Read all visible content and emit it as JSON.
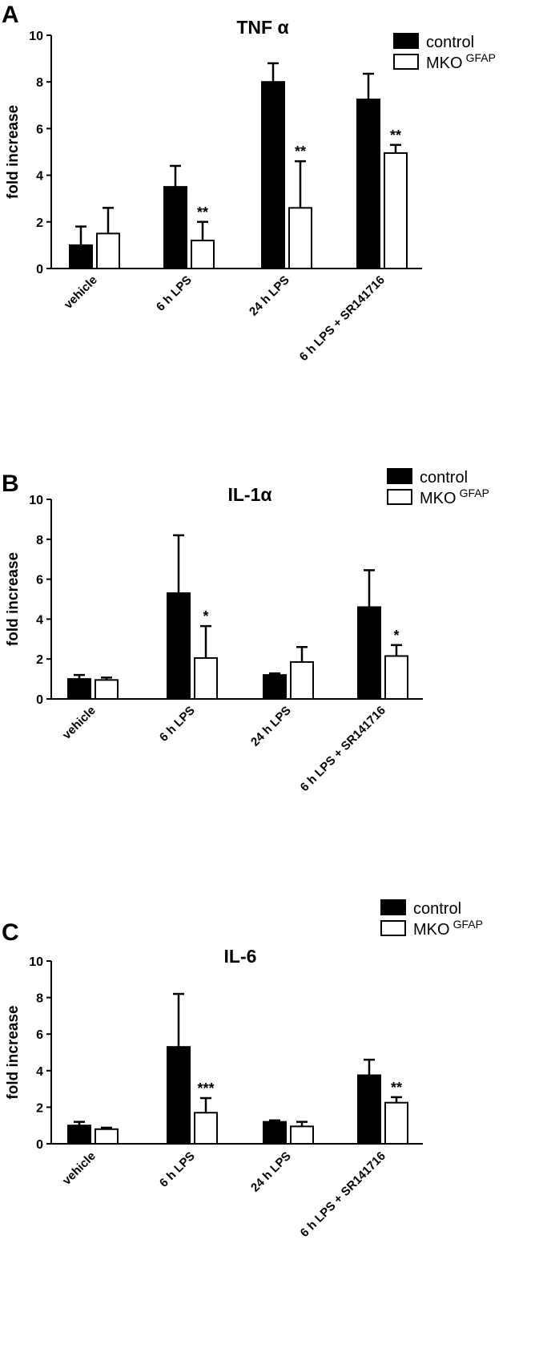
{
  "chart_data": [
    {
      "type": "bar",
      "panel_label": "A",
      "title": "TNF α",
      "ylabel": "fold increase",
      "xlabel": "",
      "ylim": [
        0,
        10
      ],
      "yticks": [
        "0",
        "2",
        "4",
        "6",
        "8",
        "10"
      ],
      "categories": [
        "vehicle",
        "6 h LPS",
        "24 h LPS",
        "6 h LPS + SR141716"
      ],
      "legend": {
        "position": "top-right",
        "entries": [
          {
            "name": "control",
            "sup": ""
          },
          {
            "name": "MKO",
            "sup": "GFAP"
          }
        ]
      },
      "series": [
        {
          "name": "control",
          "color": "#000000",
          "values": [
            1.0,
            3.5,
            8.0,
            7.25
          ],
          "errors": [
            0.8,
            0.9,
            0.8,
            1.1
          ],
          "significance": [
            "",
            "",
            "",
            ""
          ]
        },
        {
          "name": "MKO GFAP",
          "color": "#ffffff",
          "values": [
            1.5,
            1.2,
            2.6,
            4.95
          ],
          "errors": [
            1.1,
            0.8,
            2.0,
            0.35
          ],
          "significance": [
            "",
            "**",
            "**",
            "**"
          ]
        }
      ]
    },
    {
      "type": "bar",
      "panel_label": "B",
      "title": "IL-1α",
      "ylabel": "fold increase",
      "xlabel": "",
      "ylim": [
        0,
        10
      ],
      "yticks": [
        "0",
        "2",
        "4",
        "6",
        "8",
        "10"
      ],
      "categories": [
        "vehicle",
        "6 h LPS",
        "24 h LPS",
        "6 h LPS + SR141716"
      ],
      "legend": {
        "position": "top-right",
        "entries": [
          {
            "name": "control",
            "sup": ""
          },
          {
            "name": "MKO",
            "sup": "GFAP"
          }
        ]
      },
      "series": [
        {
          "name": "control",
          "color": "#000000",
          "values": [
            1.0,
            5.3,
            1.2,
            4.6
          ],
          "errors": [
            0.2,
            2.9,
            0.08,
            1.85
          ],
          "significance": [
            "",
            "",
            "",
            ""
          ]
        },
        {
          "name": "MKO GFAP",
          "color": "#ffffff",
          "values": [
            0.95,
            2.05,
            1.85,
            2.15
          ],
          "errors": [
            0.12,
            1.6,
            0.75,
            0.55
          ],
          "significance": [
            "",
            "*",
            "",
            "*"
          ]
        }
      ]
    },
    {
      "type": "bar",
      "panel_label": "C",
      "title": "IL-6",
      "ylabel": "fold increase",
      "xlabel": "",
      "ylim": [
        0,
        10
      ],
      "yticks": [
        "0",
        "2",
        "4",
        "6",
        "8",
        "10"
      ],
      "categories": [
        "vehicle",
        "6 h LPS",
        "24 h LPS",
        "6 h LPS + SR141716"
      ],
      "legend": {
        "position": "top-right",
        "entries": [
          {
            "name": "control",
            "sup": ""
          },
          {
            "name": "MKO",
            "sup": "GFAP"
          }
        ]
      },
      "series": [
        {
          "name": "control",
          "color": "#000000",
          "values": [
            1.0,
            5.3,
            1.2,
            3.75
          ],
          "errors": [
            0.2,
            2.9,
            0.08,
            0.85
          ],
          "significance": [
            "",
            "",
            "",
            ""
          ]
        },
        {
          "name": "MKO GFAP",
          "color": "#ffffff",
          "values": [
            0.8,
            1.7,
            0.95,
            2.25
          ],
          "errors": [
            0.08,
            0.8,
            0.25,
            0.3
          ],
          "significance": [
            "",
            "***",
            "",
            "**"
          ]
        }
      ]
    }
  ]
}
